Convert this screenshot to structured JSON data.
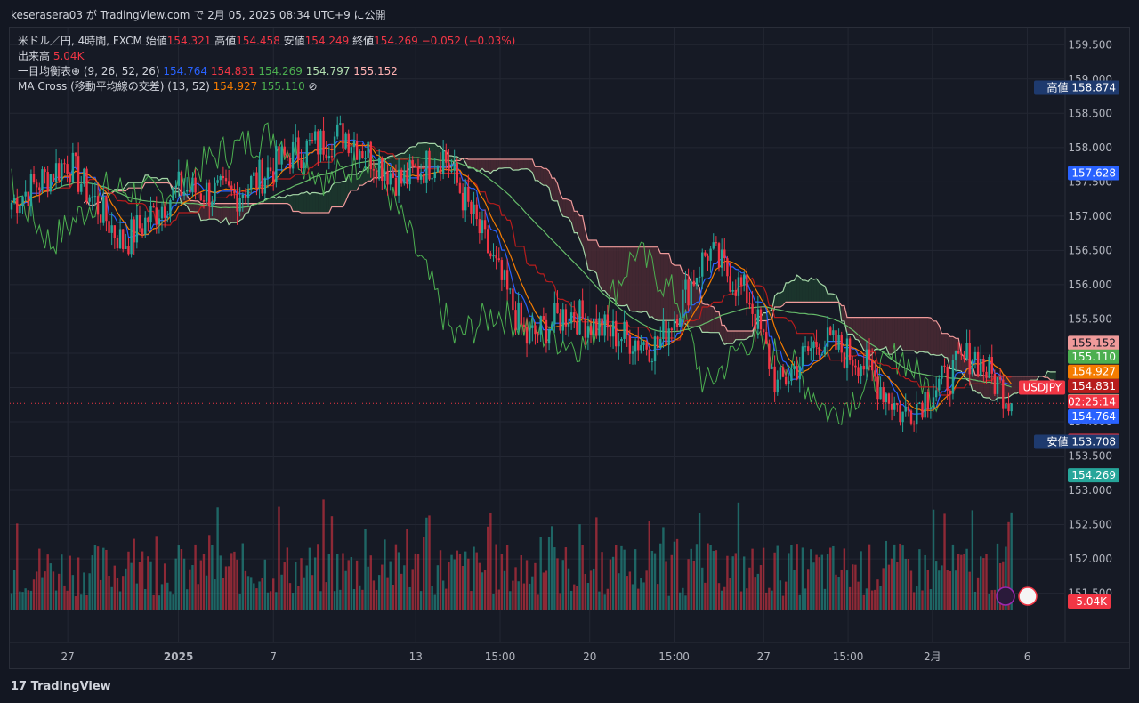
{
  "header": {
    "publish_text": "keserasera03 が TradingView.com で 2月 05, 2025 08:34 UTC+9 に公開"
  },
  "legend": {
    "symbol": "米ドル／円, 4時間, FXCM",
    "open_label": "始値",
    "open": "154.321",
    "high_label": "高値",
    "high": "154.458",
    "low_label": "安値",
    "low": "154.249",
    "close_label": "終値",
    "close": "154.269",
    "change": "−0.052 (−0.03%)",
    "volume_label": "出来高",
    "volume": "5.04K",
    "ichimoku_label": "一目均衡表⊕ (9, 26, 52, 26)",
    "ichimoku_vals": [
      "154.764",
      "154.831",
      "154.269",
      "154.797",
      "155.152"
    ],
    "ma_label": "MA Cross (移動平均線の交差) (13, 52)",
    "ma_vals": [
      "154.927",
      "155.110"
    ],
    "ma_icon": "⊘"
  },
  "footer": {
    "logo": "TradingView"
  },
  "colors": {
    "bg": "#161a25",
    "up": "#26a69a",
    "down": "#f23645",
    "grid": "#232733",
    "tenkan": "#2962ff",
    "kijun": "#b71c1c",
    "chikou": "#4caf50",
    "spanA": "#a5d6a7",
    "spanB": "#ef9a9a",
    "ma_fast": "#f57c00",
    "ma_slow": "#66bb6a",
    "cloud_bull": "#1c3a2e",
    "cloud_bear": "#4a2a34"
  },
  "chart_data": {
    "type": "candlestick",
    "symbol": "USDJPY",
    "timeframe": "4H",
    "y_axis": {
      "min": 151.3,
      "max": 159.75,
      "ticks": [
        "151.500",
        "152.000",
        "152.500",
        "153.000",
        "153.500",
        "154.000",
        "154.500",
        "155.000",
        "155.500",
        "156.000",
        "156.500",
        "157.000",
        "157.500",
        "158.000",
        "158.500",
        "159.000",
        "159.500"
      ]
    },
    "x_axis": {
      "ticks": [
        "27",
        "2025",
        "7",
        "13",
        "15:00",
        "20",
        "15:00",
        "27",
        "15:00",
        "2月",
        "6"
      ]
    },
    "high_marker": {
      "label": "高値",
      "value": "158.874"
    },
    "low_marker": {
      "label": "安値",
      "value": "153.708"
    },
    "price_tags": [
      {
        "text": "157.628",
        "value": 157.628,
        "color": "#2962ff"
      },
      {
        "text": "155.152",
        "value": 155.152,
        "color": "#ef9a9a"
      },
      {
        "text": "155.110",
        "value": 155.11,
        "color": "#4caf50"
      },
      {
        "text": "154.927",
        "value": 154.927,
        "color": "#f57c00"
      },
      {
        "text": "154.831",
        "value": 154.831,
        "color": "#b71c1c"
      },
      {
        "text": "154.797",
        "value": 154.797,
        "color": "#a5d6a7"
      },
      {
        "text": "154.764",
        "value": 154.764,
        "color": "#2962ff"
      },
      {
        "text": "154.269",
        "value": 154.269,
        "color": "#f23645"
      },
      {
        "text": "154.269",
        "value": 154.269,
        "color": "#26a69a"
      }
    ],
    "symbol_tag": "USDJPY",
    "countdown": "02:25:14",
    "volume_tag": "5.04K",
    "key_points": [
      {
        "t": 0,
        "close": 157.2
      },
      {
        "t": 20,
        "close": 157.8
      },
      {
        "t": 40,
        "close": 156.6
      },
      {
        "t": 60,
        "close": 157.4
      },
      {
        "t": 80,
        "close": 157.3
      },
      {
        "t": 100,
        "close": 157.9
      },
      {
        "t": 120,
        "close": 158.2
      },
      {
        "t": 140,
        "close": 157.5
      },
      {
        "t": 155,
        "close": 157.9
      },
      {
        "t": 170,
        "close": 156.6
      },
      {
        "t": 185,
        "close": 155.2
      },
      {
        "t": 200,
        "close": 155.6
      },
      {
        "t": 215,
        "close": 155.3
      },
      {
        "t": 232,
        "close": 155.1
      },
      {
        "t": 250,
        "close": 156.5
      },
      {
        "t": 265,
        "close": 155.8
      },
      {
        "t": 275,
        "close": 154.5
      },
      {
        "t": 290,
        "close": 155.2
      },
      {
        "t": 305,
        "close": 154.9
      },
      {
        "t": 320,
        "close": 154.1
      },
      {
        "t": 335,
        "close": 154.6
      },
      {
        "t": 345,
        "close": 155.0
      },
      {
        "t": 355,
        "close": 154.5
      },
      {
        "t": 360,
        "close": 154.27
      }
    ]
  }
}
